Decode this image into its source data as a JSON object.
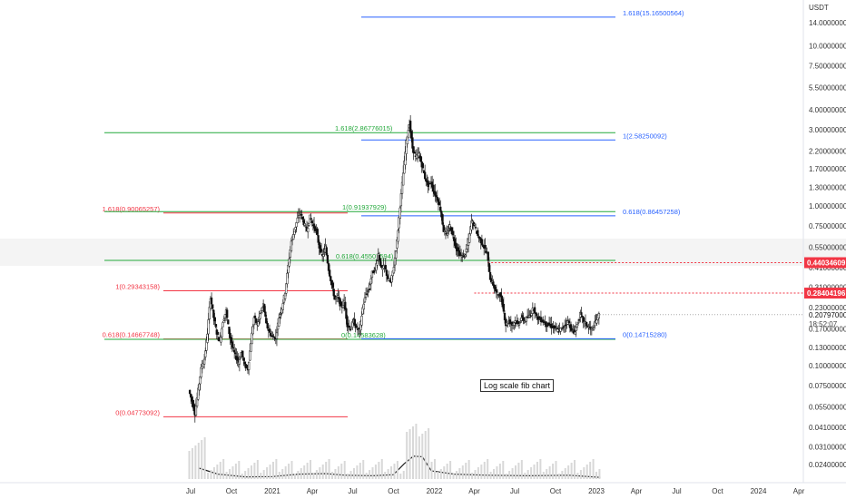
{
  "chart_data": {
    "type": "candlestick",
    "title": "",
    "scale": "log",
    "currency": "USDT",
    "ylim": [
      0.02,
      20
    ],
    "grid": false,
    "y_ticks": [
      "14.00000000",
      "10.00000000",
      "7.50000000",
      "5.50000000",
      "4.00000000",
      "3.00000000",
      "2.20000000",
      "1.70000000",
      "1.30000000",
      "1.00000000",
      "0.75000000",
      "0.55000000",
      "0.41000000",
      "0.31000000",
      "0.23000000",
      "0.17000000",
      "0.13000000",
      "0.10000000",
      "0.07500000",
      "0.05500000",
      "0.04100000",
      "0.03100000",
      "0.02400000"
    ],
    "x_ticks": [
      "Jul",
      "Oct",
      "2021",
      "Apr",
      "Jul",
      "Oct",
      "2022",
      "Apr",
      "Jul",
      "Oct",
      "2023",
      "Apr",
      "Jul",
      "Oct",
      "2024",
      "Apr"
    ],
    "price_path": [
      {
        "t": "2020-06-28",
        "p": 0.07
      },
      {
        "t": "2020-07-05",
        "p": 0.06
      },
      {
        "t": "2020-07-12",
        "p": 0.05
      },
      {
        "t": "2020-07-19",
        "p": 0.07
      },
      {
        "t": "2020-07-26",
        "p": 0.095
      },
      {
        "t": "2020-08-02",
        "p": 0.11
      },
      {
        "t": "2020-08-09",
        "p": 0.16
      },
      {
        "t": "2020-08-16",
        "p": 0.27
      },
      {
        "t": "2020-08-23",
        "p": 0.2
      },
      {
        "t": "2020-08-30",
        "p": 0.16
      },
      {
        "t": "2020-09-06",
        "p": 0.14
      },
      {
        "t": "2020-09-13",
        "p": 0.19
      },
      {
        "t": "2020-09-20",
        "p": 0.22
      },
      {
        "t": "2020-09-27",
        "p": 0.16
      },
      {
        "t": "2020-10-04",
        "p": 0.13
      },
      {
        "t": "2020-10-11",
        "p": 0.115
      },
      {
        "t": "2020-10-18",
        "p": 0.105
      },
      {
        "t": "2020-10-25",
        "p": 0.12
      },
      {
        "t": "2020-11-01",
        "p": 0.1
      },
      {
        "t": "2020-11-08",
        "p": 0.095
      },
      {
        "t": "2020-11-15",
        "p": 0.14
      },
      {
        "t": "2020-11-22",
        "p": 0.2
      },
      {
        "t": "2020-11-29",
        "p": 0.18
      },
      {
        "t": "2020-12-06",
        "p": 0.21
      },
      {
        "t": "2020-12-13",
        "p": 0.24
      },
      {
        "t": "2020-12-20",
        "p": 0.18
      },
      {
        "t": "2020-12-27",
        "p": 0.16
      },
      {
        "t": "2021-01-03",
        "p": 0.15
      },
      {
        "t": "2021-01-10",
        "p": 0.15
      },
      {
        "t": "2021-01-17",
        "p": 0.2
      },
      {
        "t": "2021-01-24",
        "p": 0.23
      },
      {
        "t": "2021-01-31",
        "p": 0.29
      },
      {
        "t": "2021-02-07",
        "p": 0.42
      },
      {
        "t": "2021-02-14",
        "p": 0.6
      },
      {
        "t": "2021-02-21",
        "p": 0.7
      },
      {
        "t": "2021-02-28",
        "p": 0.83
      },
      {
        "t": "2021-03-07",
        "p": 0.9
      },
      {
        "t": "2021-03-14",
        "p": 0.78
      },
      {
        "t": "2021-03-21",
        "p": 0.7
      },
      {
        "t": "2021-03-28",
        "p": 0.85
      },
      {
        "t": "2021-04-04",
        "p": 0.75
      },
      {
        "t": "2021-04-11",
        "p": 0.7
      },
      {
        "t": "2021-04-18",
        "p": 0.55
      },
      {
        "t": "2021-04-25",
        "p": 0.48
      },
      {
        "t": "2021-05-02",
        "p": 0.55
      },
      {
        "t": "2021-05-09",
        "p": 0.4
      },
      {
        "t": "2021-05-16",
        "p": 0.32
      },
      {
        "t": "2021-05-23",
        "p": 0.26
      },
      {
        "t": "2021-05-30",
        "p": 0.27
      },
      {
        "t": "2021-06-06",
        "p": 0.23
      },
      {
        "t": "2021-06-13",
        "p": 0.25
      },
      {
        "t": "2021-06-20",
        "p": 0.18
      },
      {
        "t": "2021-06-27",
        "p": 0.17
      },
      {
        "t": "2021-07-04",
        "p": 0.19
      },
      {
        "t": "2021-07-11",
        "p": 0.17
      },
      {
        "t": "2021-07-18",
        "p": 0.165
      },
      {
        "t": "2021-07-25",
        "p": 0.23
      },
      {
        "t": "2021-08-01",
        "p": 0.28
      },
      {
        "t": "2021-08-08",
        "p": 0.3
      },
      {
        "t": "2021-08-15",
        "p": 0.38
      },
      {
        "t": "2021-08-22",
        "p": 0.4
      },
      {
        "t": "2021-08-29",
        "p": 0.5
      },
      {
        "t": "2021-09-05",
        "p": 0.4
      },
      {
        "t": "2021-09-12",
        "p": 0.42
      },
      {
        "t": "2021-09-19",
        "p": 0.35
      },
      {
        "t": "2021-09-26",
        "p": 0.33
      },
      {
        "t": "2021-10-03",
        "p": 0.42
      },
      {
        "t": "2021-10-10",
        "p": 0.6
      },
      {
        "t": "2021-10-17",
        "p": 1.0
      },
      {
        "t": "2021-10-24",
        "p": 1.6
      },
      {
        "t": "2021-10-31",
        "p": 2.5
      },
      {
        "t": "2021-11-07",
        "p": 3.3
      },
      {
        "t": "2021-11-14",
        "p": 2.3
      },
      {
        "t": "2021-11-21",
        "p": 2.0
      },
      {
        "t": "2021-11-28",
        "p": 2.1
      },
      {
        "t": "2021-12-05",
        "p": 1.8
      },
      {
        "t": "2021-12-12",
        "p": 1.5
      },
      {
        "t": "2021-12-19",
        "p": 1.35
      },
      {
        "t": "2021-12-26",
        "p": 1.4
      },
      {
        "t": "2022-01-02",
        "p": 1.2
      },
      {
        "t": "2022-01-09",
        "p": 1.1
      },
      {
        "t": "2022-01-16",
        "p": 0.95
      },
      {
        "t": "2022-01-23",
        "p": 0.7
      },
      {
        "t": "2022-01-30",
        "p": 0.65
      },
      {
        "t": "2022-02-06",
        "p": 0.75
      },
      {
        "t": "2022-02-13",
        "p": 0.65
      },
      {
        "t": "2022-02-20",
        "p": 0.55
      },
      {
        "t": "2022-02-27",
        "p": 0.5
      },
      {
        "t": "2022-03-06",
        "p": 0.48
      },
      {
        "t": "2022-03-13",
        "p": 0.5
      },
      {
        "t": "2022-03-20",
        "p": 0.6
      },
      {
        "t": "2022-03-27",
        "p": 0.8
      },
      {
        "t": "2022-04-03",
        "p": 0.75
      },
      {
        "t": "2022-04-10",
        "p": 0.65
      },
      {
        "t": "2022-04-17",
        "p": 0.6
      },
      {
        "t": "2022-04-24",
        "p": 0.55
      },
      {
        "t": "2022-05-01",
        "p": 0.5
      },
      {
        "t": "2022-05-08",
        "p": 0.35
      },
      {
        "t": "2022-05-15",
        "p": 0.32
      },
      {
        "t": "2022-05-22",
        "p": 0.28
      },
      {
        "t": "2022-05-29",
        "p": 0.28
      },
      {
        "t": "2022-06-05",
        "p": 0.24
      },
      {
        "t": "2022-06-12",
        "p": 0.18
      },
      {
        "t": "2022-06-19",
        "p": 0.19
      },
      {
        "t": "2022-06-26",
        "p": 0.18
      },
      {
        "t": "2022-07-03",
        "p": 0.19
      },
      {
        "t": "2022-07-10",
        "p": 0.18
      },
      {
        "t": "2022-07-17",
        "p": 0.2
      },
      {
        "t": "2022-07-24",
        "p": 0.19
      },
      {
        "t": "2022-07-31",
        "p": 0.2
      },
      {
        "t": "2022-08-07",
        "p": 0.21
      },
      {
        "t": "2022-08-14",
        "p": 0.23
      },
      {
        "t": "2022-08-21",
        "p": 0.2
      },
      {
        "t": "2022-08-28",
        "p": 0.195
      },
      {
        "t": "2022-09-04",
        "p": 0.19
      },
      {
        "t": "2022-09-11",
        "p": 0.18
      },
      {
        "t": "2022-09-18",
        "p": 0.18
      },
      {
        "t": "2022-09-25",
        "p": 0.175
      },
      {
        "t": "2022-10-02",
        "p": 0.17
      },
      {
        "t": "2022-10-09",
        "p": 0.165
      },
      {
        "t": "2022-10-16",
        "p": 0.17
      },
      {
        "t": "2022-10-23",
        "p": 0.18
      },
      {
        "t": "2022-10-30",
        "p": 0.19
      },
      {
        "t": "2022-11-06",
        "p": 0.17
      },
      {
        "t": "2022-11-13",
        "p": 0.16
      },
      {
        "t": "2022-11-20",
        "p": 0.18
      },
      {
        "t": "2022-11-27",
        "p": 0.21
      },
      {
        "t": "2022-12-04",
        "p": 0.19
      },
      {
        "t": "2022-12-11",
        "p": 0.18
      },
      {
        "t": "2022-12-18",
        "p": 0.17
      },
      {
        "t": "2022-12-25",
        "p": 0.17
      },
      {
        "t": "2023-01-01",
        "p": 0.19
      },
      {
        "t": "2023-01-08",
        "p": 0.208
      }
    ],
    "current_price": "0.20797000",
    "countdown": "18:52:07",
    "price_tags": [
      {
        "value": "0.44034609",
        "color": "#f23645"
      },
      {
        "value": "0.28404196",
        "color": "#f23645"
      }
    ],
    "fib_sets": [
      {
        "name": "red",
        "color": "#f23645",
        "start": "2020-06-01",
        "end": "2021-06-01",
        "levels": [
          {
            "ratio": 0,
            "value": 0.04773092,
            "label": "0(0.04773092)"
          },
          {
            "ratio": 0.618,
            "value": 0.14667748,
            "label": "0.618(0.14667748)"
          },
          {
            "ratio": 1,
            "value": 0.29343158,
            "label": "1(0.29343158)"
          },
          {
            "ratio": 1.618,
            "value": 0.90065257,
            "label": "1.618(0.90065257)"
          }
        ]
      },
      {
        "name": "green",
        "color": "#22a83a",
        "start": "2020-04-01",
        "end": "2023-01-10",
        "levels": [
          {
            "ratio": 0,
            "value": 0.14583628,
            "label": "0(0.14583628)"
          },
          {
            "ratio": 0.618,
            "value": 0.45507594,
            "label": "0.618(0.45507594)"
          },
          {
            "ratio": 1,
            "value": 0.91937929,
            "label": "1(0.91937929)"
          },
          {
            "ratio": 1.618,
            "value": 2.86776015,
            "label": "1.618(2.86776015)"
          }
        ]
      },
      {
        "name": "blue",
        "color": "#2962ff",
        "start": "2021-07-20",
        "end": "2023-01-10",
        "levels": [
          {
            "ratio": 0,
            "value": 0.1471528,
            "label": "0(0.14715280)"
          },
          {
            "ratio": 0.618,
            "value": 0.86457258,
            "label": "0.618(0.86457258)"
          },
          {
            "ratio": 1,
            "value": 2.58250092,
            "label": "1(2.58250092)"
          },
          {
            "ratio": 1.618,
            "value": 15.16500564,
            "label": "1.618(15.16500564)"
          }
        ]
      }
    ],
    "dotted_levels": [
      {
        "value": 0.44034609,
        "color": "#f23645",
        "start": "2022-05-01"
      },
      {
        "value": 0.28404196,
        "color": "#f23645",
        "start": "2022-04-01"
      }
    ],
    "volume_path": [
      {
        "t": "2020-07-20",
        "v": 2.0
      },
      {
        "t": "2020-09-01",
        "v": 0.9
      },
      {
        "t": "2020-11-01",
        "v": 0.4
      },
      {
        "t": "2021-01-01",
        "v": 0.45
      },
      {
        "t": "2021-03-01",
        "v": 0.9
      },
      {
        "t": "2021-05-01",
        "v": 1.0
      },
      {
        "t": "2021-06-15",
        "v": 0.7
      },
      {
        "t": "2021-08-15",
        "v": 0.6
      },
      {
        "t": "2021-10-01",
        "v": 0.8
      },
      {
        "t": "2021-10-25",
        "v": 2.8
      },
      {
        "t": "2021-11-15",
        "v": 4.2
      },
      {
        "t": "2021-12-05",
        "v": 4.1
      },
      {
        "t": "2021-12-25",
        "v": 1.5
      },
      {
        "t": "2022-02-15",
        "v": 0.9
      },
      {
        "t": "2022-05-01",
        "v": 0.7
      },
      {
        "t": "2022-08-01",
        "v": 0.6
      },
      {
        "t": "2022-11-01",
        "v": 0.7
      },
      {
        "t": "2023-01-10",
        "v": 0.3
      }
    ],
    "annotation": "Log scale fib chart"
  }
}
